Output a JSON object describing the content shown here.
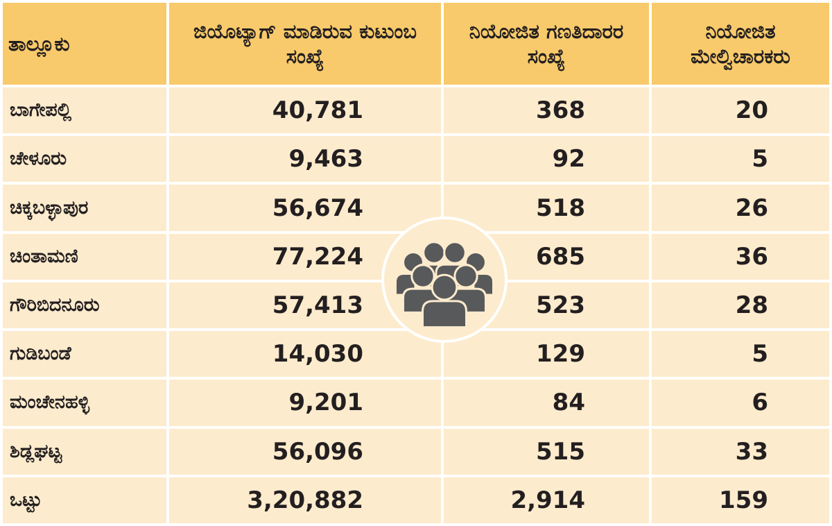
{
  "chart_data": {
    "type": "table",
    "columns": [
      "ತಾಲ್ಲೂಕು",
      "ಜಿಯೊಟ್ಯಾಗ್ ಮಾಡಿರುವ ಕುಟುಂಬ ಸಂಖ್ಯೆ",
      "ನಿಯೋಜಿತ ಗಣತಿದಾರರ ಸಂಖ್ಯೆ",
      "ನಿಯೋಜಿತ ಮೇಲ್ವಿಚಾರಕರು"
    ],
    "rows": [
      [
        "ಬಾಗೇಪಲ್ಲಿ",
        "40,781",
        "368",
        "20"
      ],
      [
        "ಚೇಳೂರು",
        "9,463",
        "92",
        "5"
      ],
      [
        "ಚಿಕ್ಕಬಳ್ಳಾಪುರ",
        "56,674",
        "518",
        "26"
      ],
      [
        "ಚಿಂತಾಮಣಿ",
        "77,224",
        "685",
        "36"
      ],
      [
        "ಗೌರಿಬಿದನೂರು",
        "57,413",
        "523",
        "28"
      ],
      [
        "ಗುಡಿಬಂಡೆ",
        "14,030",
        "129",
        "5"
      ],
      [
        "ಮಂಚೇನಹಳ್ಳಿ",
        "9,201",
        "84",
        "6"
      ],
      [
        "ಶಿಡ್ಲಘಟ್ಟ",
        "56,096",
        "515",
        "33"
      ],
      [
        "ಒಟ್ಟು",
        "3,20,882",
        "2,914",
        "159"
      ]
    ]
  },
  "colors": {
    "header_bg": "#f8ca6b",
    "cell_bg": "#fdebcd",
    "icon": "#58595b"
  },
  "icon": "people-group-icon"
}
